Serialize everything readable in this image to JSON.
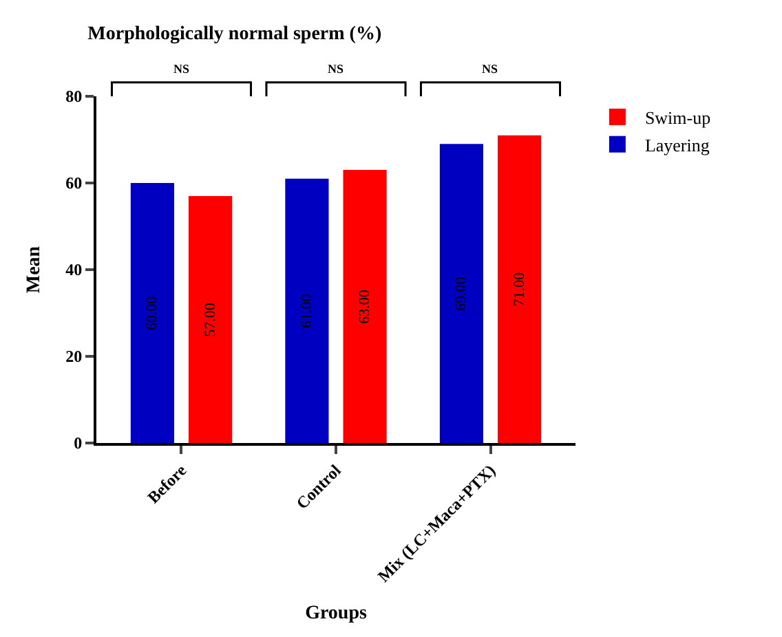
{
  "chart_data": {
    "type": "bar",
    "title": "Morphologically normal sperm (%)",
    "xlabel": "Groups",
    "ylabel": "Mean",
    "categories": [
      "Before",
      "Control",
      "Mix (LC+Maca+PTX)"
    ],
    "series": [
      {
        "name": "Layering",
        "color": "#0000c0",
        "values": [
          60,
          61,
          69
        ],
        "value_labels": [
          "60.00",
          "61.00",
          "69.00"
        ]
      },
      {
        "name": "Swim-up",
        "color": "#ff0000",
        "values": [
          57,
          63,
          71
        ],
        "value_labels": [
          "57.00",
          "63.00",
          "71.00"
        ]
      }
    ],
    "ylim": [
      0,
      80
    ],
    "yticks": [
      0,
      20,
      40,
      60,
      80
    ],
    "legend": "top right",
    "annotations": [
      "NS",
      "NS",
      "NS"
    ]
  }
}
